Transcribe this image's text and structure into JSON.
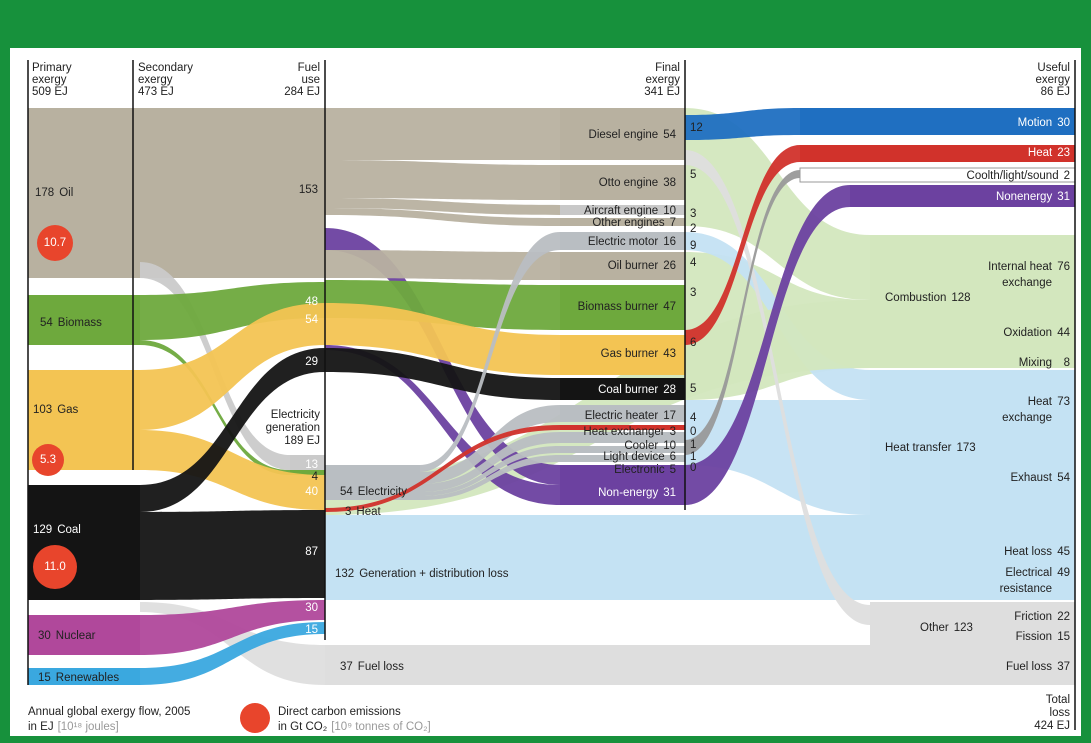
{
  "columns": [
    {
      "lines": [
        "Primary",
        "exergy",
        "509 EJ"
      ]
    },
    {
      "lines": [
        "Secondary",
        "exergy",
        "473 EJ"
      ]
    },
    {
      "lines": [
        "Fuel",
        "use",
        "284 EJ"
      ]
    },
    {
      "lines": [
        "Final",
        "exergy",
        "341 EJ"
      ]
    },
    {
      "lines": [
        "Useful",
        "exergy",
        "86 EJ"
      ]
    }
  ],
  "primary": [
    {
      "label": "Oil",
      "value": 178,
      "emissions": 10.7
    },
    {
      "label": "Biomass",
      "value": 54
    },
    {
      "label": "Gas",
      "value": 103,
      "emissions": 5.3
    },
    {
      "label": "Coal",
      "value": 129,
      "emissions": 11,
      "emissions_label": "11.0"
    },
    {
      "label": "Nuclear",
      "value": 30
    },
    {
      "label": "Renewables",
      "value": 15
    }
  ],
  "fuel_use": [
    153,
    48,
    54,
    29,
    13,
    4,
    40,
    87,
    30,
    15
  ],
  "electricity_generation": {
    "lines": [
      "Electricity",
      "generation",
      "189 EJ"
    ]
  },
  "carriers": [
    {
      "value": 54,
      "label": "Electricity"
    },
    {
      "value": 3,
      "label": "Heat"
    },
    {
      "value": 132,
      "label": "Generation + distribution loss"
    },
    {
      "value": 37,
      "label": "Fuel loss"
    }
  ],
  "devices": [
    {
      "label": "Diesel engine",
      "value": 54,
      "useful": 12
    },
    {
      "label": "Otto engine",
      "value": 38,
      "useful": 5
    },
    {
      "label": "Aircraft engine",
      "value": 10,
      "useful": 3
    },
    {
      "label": "Other engines",
      "value": 7,
      "useful": 2
    },
    {
      "label": "Electric motor",
      "value": 16,
      "useful": 9
    },
    {
      "label": "Oil burner",
      "value": 26,
      "useful": 4
    },
    {
      "label": "Biomass burner",
      "value": 47,
      "useful": 3
    },
    {
      "label": "Gas burner",
      "value": 43,
      "useful": 6
    },
    {
      "label": "Coal burner",
      "value": 28,
      "useful": 5
    },
    {
      "label": "Electric heater",
      "value": 17,
      "useful": 4
    },
    {
      "label": "Heat exchanger",
      "value": 3,
      "useful": 0
    },
    {
      "label": "Cooler",
      "value": 10,
      "useful": 1
    },
    {
      "label": "Light device",
      "value": 6,
      "useful": 1
    },
    {
      "label": "Electronic",
      "value": 5,
      "useful": 0
    },
    {
      "label": "Non-energy",
      "value": 31
    }
  ],
  "useful": [
    {
      "label": "Motion",
      "value": 30
    },
    {
      "label": "Heat",
      "value": 23
    },
    {
      "label": "Coolth/light/sound",
      "value": 2
    },
    {
      "label": "Nonenergy",
      "value": 31
    }
  ],
  "loss_groups": [
    {
      "label": "Combustion",
      "value": 128
    },
    {
      "label": "Heat transfer",
      "value": 173
    },
    {
      "label": "Other",
      "value": 123
    }
  ],
  "losses": [
    {
      "lines": [
        "Internal heat",
        "exchange"
      ],
      "value": 76
    },
    {
      "lines": [
        "Oxidation"
      ],
      "value": 44
    },
    {
      "lines": [
        "Mixing"
      ],
      "value": 8
    },
    {
      "lines": [
        "Heat",
        "exchange"
      ],
      "value": 73
    },
    {
      "lines": [
        "Exhaust"
      ],
      "value": 54
    },
    {
      "lines": [
        "Heat loss"
      ],
      "value": 45
    },
    {
      "lines": [
        "Electrical",
        "resistance"
      ],
      "value": 49
    },
    {
      "lines": [
        "Friction"
      ],
      "value": 22
    },
    {
      "lines": [
        "Fission"
      ],
      "value": 15
    },
    {
      "lines": [
        "Fuel loss"
      ],
      "value": 37
    }
  ],
  "total_loss": {
    "lines": [
      "Total",
      "loss",
      "424 EJ"
    ]
  },
  "footer": {
    "title": "Annual global exergy flow, 2005",
    "unit": "in EJ",
    "unit_note": "[10¹⁸ joules]",
    "legend": "Direct carbon emissions",
    "legend_unit": "in Gt CO₂",
    "legend_note": "[10⁹ tonnes of CO₂]"
  }
}
